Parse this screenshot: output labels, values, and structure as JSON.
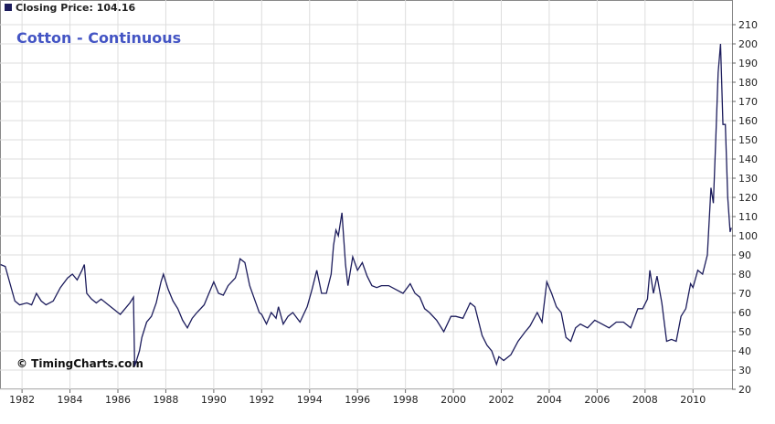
{
  "chart_data": {
    "type": "line",
    "title": "Cotton - Continuous",
    "price_label": "Closing Price: 104.16",
    "watermark": "© TimingCharts.com",
    "xlim": [
      1981.08,
      2011.63
    ],
    "xticks": [
      1982,
      1984,
      1986,
      1988,
      1990,
      1992,
      1994,
      1996,
      1998,
      2000,
      2002,
      2004,
      2006,
      2008,
      2010
    ],
    "ylim": [
      20,
      220
    ],
    "yticks": [
      20,
      30,
      40,
      50,
      60,
      70,
      80,
      90,
      100,
      110,
      120,
      130,
      140,
      150,
      160,
      170,
      180,
      190,
      200,
      210
    ],
    "grid": true,
    "x": [
      1981.1,
      1981.3,
      1981.5,
      1981.7,
      1981.9,
      1982.2,
      1982.4,
      1982.6,
      1982.8,
      1983.0,
      1983.3,
      1983.6,
      1983.9,
      1984.1,
      1984.3,
      1984.5,
      1984.6,
      1984.7,
      1984.9,
      1985.1,
      1985.3,
      1985.6,
      1985.9,
      1986.1,
      1986.3,
      1986.5,
      1986.65,
      1986.7,
      1986.9,
      1987.0,
      1987.2,
      1987.4,
      1987.6,
      1987.8,
      1987.9,
      1988.1,
      1988.3,
      1988.5,
      1988.7,
      1988.9,
      1989.1,
      1989.3,
      1989.6,
      1989.8,
      1990.0,
      1990.2,
      1990.4,
      1990.6,
      1990.9,
      1991.0,
      1991.1,
      1991.3,
      1991.5,
      1991.7,
      1991.9,
      1992.0,
      1992.2,
      1992.4,
      1992.6,
      1992.7,
      1992.9,
      1993.1,
      1993.3,
      1993.6,
      1993.9,
      1994.1,
      1994.3,
      1994.5,
      1994.7,
      1994.9,
      1995.0,
      1995.1,
      1995.2,
      1995.35,
      1995.5,
      1995.6,
      1995.8,
      1996.0,
      1996.2,
      1996.4,
      1996.6,
      1996.8,
      1997.0,
      1997.3,
      1997.6,
      1997.9,
      1998.2,
      1998.4,
      1998.6,
      1998.8,
      1999.0,
      1999.3,
      1999.6,
      1999.9,
      2000.1,
      2000.4,
      2000.7,
      2000.9,
      2001.2,
      2001.4,
      2001.6,
      2001.8,
      2001.9,
      2002.1,
      2002.4,
      2002.7,
      2003.0,
      2003.2,
      2003.5,
      2003.7,
      2003.9,
      2004.1,
      2004.3,
      2004.5,
      2004.7,
      2004.9,
      2005.1,
      2005.3,
      2005.6,
      2005.9,
      2006.2,
      2006.5,
      2006.8,
      2007.1,
      2007.4,
      2007.7,
      2007.9,
      2008.1,
      2008.2,
      2008.35,
      2008.5,
      2008.7,
      2008.9,
      2009.1,
      2009.3,
      2009.5,
      2009.7,
      2009.9,
      2010.0,
      2010.2,
      2010.4,
      2010.6,
      2010.75,
      2010.85,
      2010.95,
      2011.05,
      2011.15,
      2011.25,
      2011.35,
      2011.45,
      2011.55,
      2011.6
    ],
    "series": [
      {
        "name": "Closing Price",
        "color": "#1c1c5c",
        "values": [
          85,
          84,
          75,
          66,
          64,
          65,
          64,
          70,
          66,
          64,
          66,
          73,
          78,
          80,
          77,
          82,
          85,
          70,
          67,
          65,
          67,
          64,
          61,
          59,
          62,
          65,
          68,
          32,
          40,
          47,
          55,
          58,
          65,
          76,
          80,
          72,
          66,
          62,
          56,
          52,
          57,
          60,
          64,
          70,
          76,
          70,
          69,
          74,
          78,
          82,
          88,
          86,
          74,
          67,
          60,
          59,
          54,
          60,
          57,
          63,
          54,
          58,
          60,
          55,
          63,
          72,
          82,
          70,
          70,
          80,
          95,
          103,
          100,
          112,
          85,
          74,
          89,
          82,
          86,
          79,
          74,
          73,
          74,
          74,
          72,
          70,
          75,
          70,
          68,
          62,
          60,
          56,
          50,
          58,
          58,
          57,
          65,
          63,
          48,
          43,
          40,
          33,
          37,
          35,
          38,
          45,
          50,
          53,
          60,
          55,
          76,
          70,
          63,
          60,
          47,
          45,
          52,
          54,
          52,
          56,
          54,
          52,
          55,
          55,
          52,
          62,
          62,
          67,
          82,
          70,
          79,
          65,
          45,
          46,
          45,
          58,
          62,
          75,
          73,
          82,
          80,
          90,
          125,
          117,
          150,
          185,
          200,
          158,
          158,
          120,
          102,
          104.16
        ]
      }
    ]
  }
}
